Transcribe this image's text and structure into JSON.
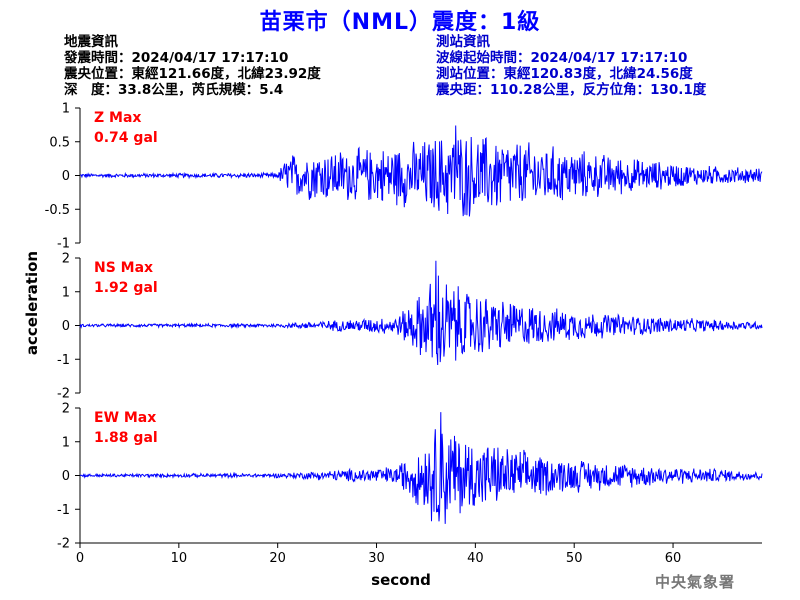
{
  "title": "苗栗市（NML）震度：1級",
  "quake_info": {
    "heading": "地震資訊",
    "time": "發震時間：2024/04/17 17:17:10",
    "epicenter": "震央位置：東經121.66度，北緯23.92度",
    "depth_magnitude": "深　度：33.8公里，芮氏規模：5.4"
  },
  "station_info": {
    "heading": "測站資訊",
    "wave_start": "波線起始時間：2024/04/17 17:17:10",
    "location": "測站位置：東經120.83度，北緯24.56度",
    "distance": "震央距：110.28公里，反方位角：130.1度"
  },
  "credit": "中央氣象署",
  "colors": {
    "title": "#0000ff",
    "trace": "#0000ff",
    "max_label": "#ff0000",
    "station_text": "#0000cc"
  },
  "chart_data": [
    {
      "type": "line",
      "component": "Z",
      "max_label": "Z Max",
      "max_value": "0.74 gal",
      "peak": 0.74,
      "ylim": [
        -1,
        1
      ],
      "yticks": [
        -1,
        -0.5,
        0,
        0.5,
        1
      ],
      "ytick_labels": [
        "-1",
        "-0.5",
        "0",
        "0.5",
        "1"
      ],
      "xlim": [
        0,
        69
      ],
      "envelope": [
        {
          "t": 0,
          "amp": 0.03
        },
        {
          "t": 20,
          "amp": 0.04
        },
        {
          "t": 21,
          "amp": 0.35
        },
        {
          "t": 24,
          "amp": 0.42
        },
        {
          "t": 30,
          "amp": 0.45
        },
        {
          "t": 34,
          "amp": 0.55
        },
        {
          "t": 38,
          "amp": 0.74
        },
        {
          "t": 44,
          "amp": 0.58
        },
        {
          "t": 50,
          "amp": 0.42
        },
        {
          "t": 56,
          "amp": 0.28
        },
        {
          "t": 62,
          "amp": 0.17
        },
        {
          "t": 69,
          "amp": 0.12
        }
      ]
    },
    {
      "type": "line",
      "component": "NS",
      "max_label": "NS Max",
      "max_value": "1.92 gal",
      "peak": 1.92,
      "ylim": [
        -2,
        2
      ],
      "yticks": [
        -2,
        -1,
        0,
        1,
        2
      ],
      "ytick_labels": [
        "-2",
        "-1",
        "0",
        "1",
        "2"
      ],
      "xlim": [
        0,
        69
      ],
      "envelope": [
        {
          "t": 0,
          "amp": 0.05
        },
        {
          "t": 20,
          "amp": 0.06
        },
        {
          "t": 26,
          "amp": 0.18
        },
        {
          "t": 32,
          "amp": 0.3
        },
        {
          "t": 35,
          "amp": 1.2
        },
        {
          "t": 36,
          "amp": 1.92
        },
        {
          "t": 38,
          "amp": 1.3
        },
        {
          "t": 42,
          "amp": 0.9
        },
        {
          "t": 48,
          "amp": 0.55
        },
        {
          "t": 55,
          "amp": 0.35
        },
        {
          "t": 62,
          "amp": 0.22
        },
        {
          "t": 69,
          "amp": 0.12
        }
      ]
    },
    {
      "type": "line",
      "component": "EW",
      "max_label": "EW Max",
      "max_value": "1.88 gal",
      "peak": 1.88,
      "ylim": [
        -2,
        2
      ],
      "yticks": [
        -2,
        -1,
        0,
        1,
        2
      ],
      "ytick_labels": [
        "-2",
        "-1",
        "0",
        "1",
        "2"
      ],
      "xlim": [
        0,
        69
      ],
      "envelope": [
        {
          "t": 0,
          "amp": 0.05
        },
        {
          "t": 20,
          "amp": 0.07
        },
        {
          "t": 26,
          "amp": 0.18
        },
        {
          "t": 32,
          "amp": 0.3
        },
        {
          "t": 35,
          "amp": 1.2
        },
        {
          "t": 36.5,
          "amp": 1.88
        },
        {
          "t": 39,
          "amp": 1.3
        },
        {
          "t": 42,
          "amp": 1.0
        },
        {
          "t": 48,
          "amp": 0.6
        },
        {
          "t": 55,
          "amp": 0.4
        },
        {
          "t": 62,
          "amp": 0.25
        },
        {
          "t": 69,
          "amp": 0.15
        }
      ]
    }
  ],
  "x_axis": {
    "ticks": [
      0,
      10,
      20,
      30,
      40,
      50,
      60
    ],
    "label": "second"
  },
  "y_axis_label": "acceleration"
}
